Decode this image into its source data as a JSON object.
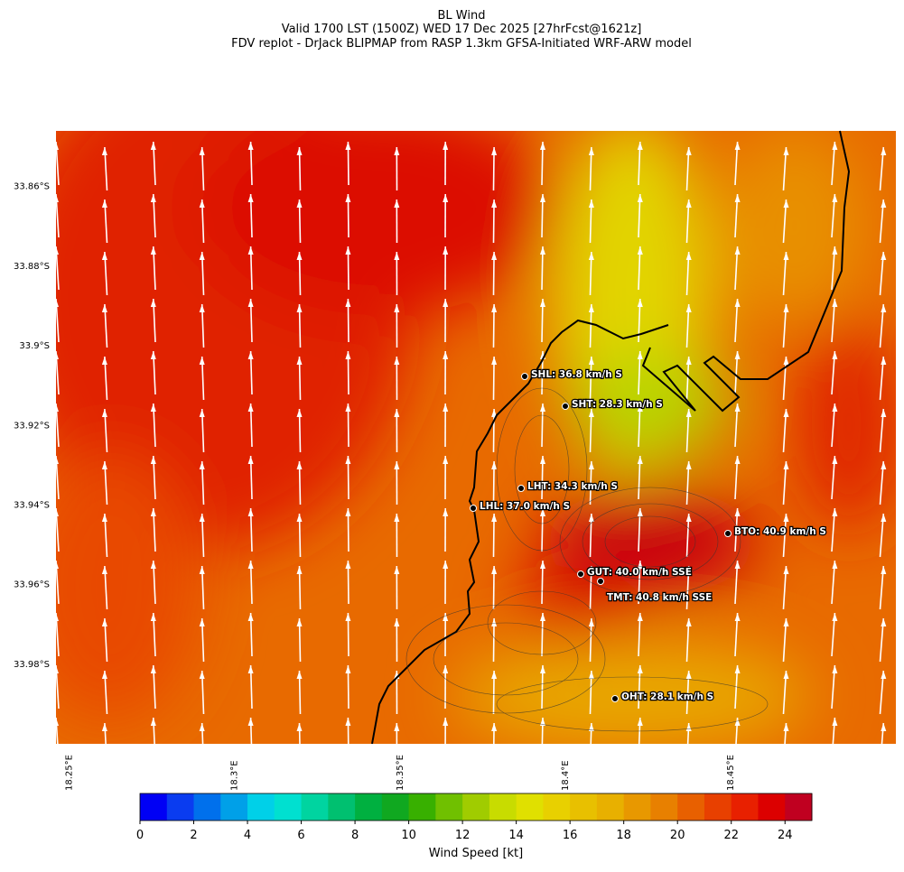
{
  "title": [
    "BL Wind",
    "Valid 1700 LST (1500Z) WED 17 Dec 2025 [27hrFcst@1621z]",
    "FDV replot - DrJack BLIPMAP from RASP 1.3km GFSA-Initiated WRF-ARW model"
  ],
  "map": {
    "xlim": [
      18.246,
      18.5
    ],
    "ylim": [
      -34.0,
      -33.846
    ],
    "xticks": [
      {
        "value": 18.25,
        "label": "18.25°E"
      },
      {
        "value": 18.3,
        "label": "18.3°E"
      },
      {
        "value": 18.35,
        "label": "18.35°E"
      },
      {
        "value": 18.4,
        "label": "18.4°E"
      },
      {
        "value": 18.45,
        "label": "18.45°E"
      }
    ],
    "yticks": [
      {
        "value": -33.86,
        "label": "33.86°S"
      },
      {
        "value": -33.88,
        "label": "33.88°S"
      },
      {
        "value": -33.9,
        "label": "33.9°S"
      },
      {
        "value": -33.92,
        "label": "33.92°S"
      },
      {
        "value": -33.94,
        "label": "33.94°S"
      },
      {
        "value": -33.96,
        "label": "33.96°S"
      },
      {
        "value": -33.98,
        "label": "33.98°S"
      }
    ],
    "stations": [
      {
        "label": "SHL: 36.8 km/h S"
      },
      {
        "label": "SHT: 28.3 km/h S"
      },
      {
        "label": "LHT: 34.3 km/h S"
      },
      {
        "label": "LHL: 37.0 km/h S"
      },
      {
        "label": "BTO: 40.9 km/h S"
      },
      {
        "label": "GUT: 40.0 km/h SSE"
      },
      {
        "label": "TMT: 40.8 km/h SSE"
      },
      {
        "label": "OHT: 28.1 km/h S"
      }
    ]
  },
  "colorbar": {
    "label": "Wind Speed [kt]",
    "lim": [
      0,
      25
    ],
    "ticks": [
      0,
      2,
      4,
      6,
      8,
      10,
      12,
      14,
      16,
      18,
      20,
      22,
      24
    ],
    "colors": [
      "#0000f5",
      "#0a3cf0",
      "#0070ec",
      "#00a0e8",
      "#00d0e8",
      "#00e0d0",
      "#00d4a0",
      "#00c070",
      "#00b040",
      "#10a820",
      "#38b000",
      "#70c000",
      "#a0cc00",
      "#c8dc00",
      "#e0e000",
      "#e8d000",
      "#e8c000",
      "#e8b000",
      "#e89800",
      "#e88000",
      "#e86000",
      "#e84000",
      "#e82000",
      "#dc0000",
      "#c00020"
    ]
  }
}
